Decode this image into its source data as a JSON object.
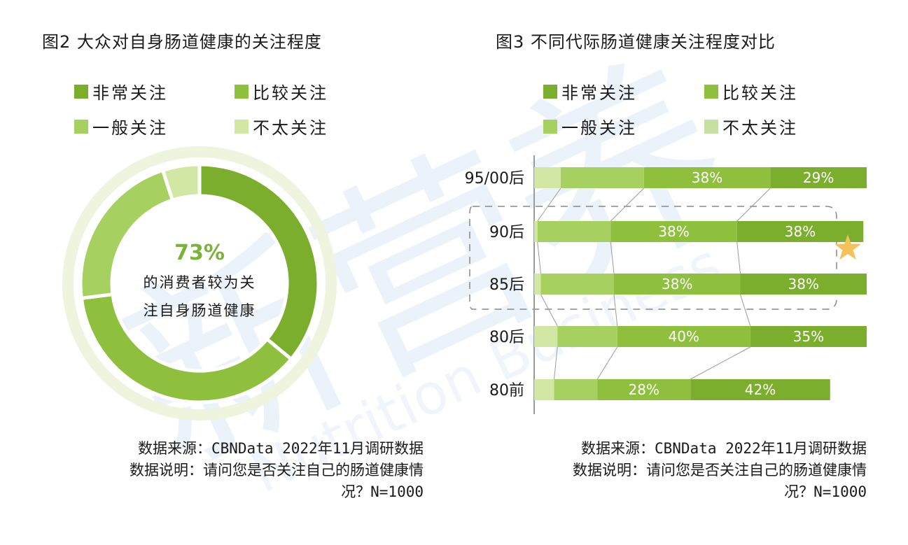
{
  "fig2": {
    "title": "图2 大众对自身肠道健康的关注程度",
    "legend": [
      {
        "label": "非常关注",
        "color": "#7cae2e"
      },
      {
        "label": "比较关注",
        "color": "#8fc03d"
      },
      {
        "label": "一般关注",
        "color": "#a6d160"
      },
      {
        "label": "不太关注",
        "color": "#d2e7a4"
      }
    ],
    "center_pct": "73%",
    "center_text_1": "的消费者较为关",
    "center_text_2": "注自身肠道健康",
    "source_line1": "数据来源：CBNData 2022年11月调研数据",
    "source_line2": "数据说明：请问您是否关注自己的肠道健康情",
    "source_line3": "况？N=1000"
  },
  "fig3": {
    "title": "图3 不同代际肠道健康关注程度对比",
    "legend": [
      {
        "label": "非常关注",
        "color": "#7cae2e"
      },
      {
        "label": "比较关注",
        "color": "#8fc03d"
      },
      {
        "label": "一般关注",
        "color": "#a6d160"
      },
      {
        "label": "不太关注",
        "color": "#c5e0a0"
      }
    ],
    "source_line1": "数据来源：CBNData 2022年11月调研数据",
    "source_line2": "数据说明：请问您是否关注自己的肠道健康情",
    "source_line3": "况？N=1000"
  },
  "chart_data": [
    {
      "type": "pie",
      "title": "图2 大众对自身肠道健康的关注程度",
      "categories": [
        "非常关注",
        "比较关注",
        "一般关注",
        "不太关注"
      ],
      "values": [
        36,
        37,
        22,
        5
      ],
      "colors": [
        "#7cae2e",
        "#8fc03d",
        "#a6d160",
        "#d2e7a4"
      ],
      "start_angle_deg": 0
    },
    {
      "type": "bar",
      "title": "图3 不同代际肠道健康关注程度对比",
      "orientation": "horizontal",
      "stacked": true,
      "categories": [
        "95/00后",
        "90后",
        "85后",
        "80后",
        "80前"
      ],
      "series": [
        {
          "name": "不太关注",
          "values": [
            8,
            1,
            2,
            7,
            6
          ],
          "color": "#d2e7a4"
        },
        {
          "name": "一般关注",
          "values": [
            25,
            22,
            22,
            18,
            13
          ],
          "color": "#a6d160"
        },
        {
          "name": "比较关注",
          "values": [
            38,
            38,
            38,
            40,
            28
          ],
          "color": "#8fc03d"
        },
        {
          "name": "非常关注",
          "values": [
            29,
            38,
            38,
            35,
            42
          ],
          "color": "#7cae2e"
        }
      ],
      "data_labels": {
        "比较关注": [
          "38%",
          "38%",
          "38%",
          "40%",
          "28%"
        ],
        "非常关注": [
          "29%",
          "38%",
          "38%",
          "35%",
          "42%"
        ]
      },
      "xlim": [
        0,
        100
      ],
      "grid": false,
      "highlight_group": [
        "90后",
        "85后"
      ],
      "highlight_marker": "star-icon"
    }
  ]
}
